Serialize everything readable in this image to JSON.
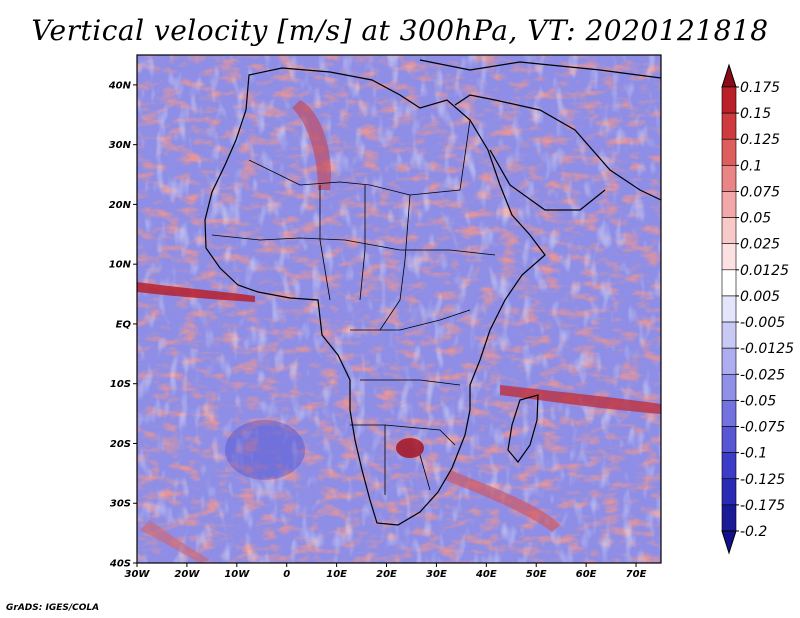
{
  "title": "Vertical velocity [m/s] at 300hPa, VT: 2020121818",
  "credit": "GrADS: IGES/COLA",
  "map": {
    "lat_labels": [
      "40N",
      "30N",
      "20N",
      "10N",
      "EQ",
      "10S",
      "20S",
      "30S",
      "40S"
    ],
    "lon_labels": [
      "30W",
      "20W",
      "10W",
      "0",
      "10E",
      "20E",
      "30E",
      "40E",
      "50E",
      "60E",
      "70E"
    ],
    "lat_range": [
      -40,
      45
    ],
    "lon_range": [
      -30,
      75
    ]
  },
  "colorbar": {
    "levels": [
      "0.175",
      "0.15",
      "0.125",
      "0.1",
      "0.075",
      "0.05",
      "0.025",
      "0.0125",
      "0.005",
      "-0.005",
      "-0.0125",
      "-0.025",
      "-0.05",
      "-0.075",
      "-0.1",
      "-0.125",
      "-0.175",
      "-0.2"
    ],
    "colors": [
      "#9b0f1c",
      "#b9202a",
      "#cd3b3f",
      "#de5e5e",
      "#ea8585",
      "#f2a8a8",
      "#f8c9c9",
      "#fbe1e1",
      "#ffffff",
      "#e4e4fb",
      "#c9c9f6",
      "#adadef",
      "#9090e8",
      "#7373e0",
      "#5757d6",
      "#3c3cc9",
      "#2a2ab5",
      "#1a1a96"
    ],
    "top_color": "#8a0a18",
    "bottom_color": "#12108a"
  }
}
